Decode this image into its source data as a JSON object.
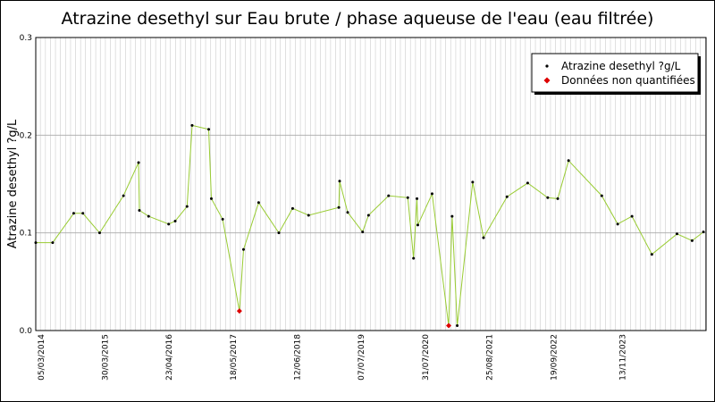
{
  "chart_data": {
    "type": "line",
    "title": "Atrazine desethyl sur Eau brute / phase aqueuse de l'eau (eau filtrée)",
    "ylabel": "Atrazine desethyl ?g/L",
    "xlabel": "",
    "ylim": [
      0,
      0.3
    ],
    "y_ticks": [
      "0.0",
      "0.1",
      "0.2",
      "0.3"
    ],
    "x_tick_labels": [
      "05/03/2014",
      "30/03/2015",
      "23/04/2016",
      "18/05/2017",
      "12/06/2018",
      "07/07/2019",
      "31/07/2020",
      "25/08/2021",
      "19/09/2022",
      "13/11/2023"
    ],
    "grid": true,
    "legend_position": "top-right",
    "colors": {
      "line": "#99cc33",
      "point": "#000000",
      "non_quantified": "#dd0000",
      "grid": "#cccccc"
    },
    "series": [
      {
        "name": "Atrazine desethyl ?g/L",
        "points": [
          [
            "2014-02-01",
            0.09
          ],
          [
            "2014-05-15",
            0.09
          ],
          [
            "2014-09-20",
            0.12
          ],
          [
            "2014-11-15",
            0.12
          ],
          [
            "2015-02-25",
            0.1
          ],
          [
            "2015-07-20",
            0.138
          ],
          [
            "2015-10-20",
            0.172
          ],
          [
            "2015-10-25",
            0.123
          ],
          [
            "2015-12-20",
            0.117
          ],
          [
            "2016-04-20",
            0.109
          ],
          [
            "2016-05-30",
            0.112
          ],
          [
            "2016-08-10",
            0.127
          ],
          [
            "2016-09-10",
            0.21
          ],
          [
            "2016-12-20",
            0.206
          ],
          [
            "2017-01-05",
            0.135
          ],
          [
            "2017-03-15",
            0.114
          ],
          [
            "2017-07-20",
            0.083
          ],
          [
            "2017-10-20",
            0.131
          ],
          [
            "2018-02-20",
            0.1
          ],
          [
            "2018-05-15",
            0.125
          ],
          [
            "2018-08-20",
            0.118
          ],
          [
            "2019-02-20",
            0.126
          ],
          [
            "2019-02-25",
            0.153
          ],
          [
            "2019-04-15",
            0.121
          ],
          [
            "2019-07-15",
            0.101
          ],
          [
            "2019-08-20",
            0.118
          ],
          [
            "2019-12-20",
            0.138
          ],
          [
            "2020-04-15",
            0.136
          ],
          [
            "2020-05-20",
            0.074
          ],
          [
            "2020-06-10",
            0.135
          ],
          [
            "2020-06-15",
            0.108
          ],
          [
            "2020-09-10",
            0.14
          ],
          [
            "2021-01-10",
            0.117
          ],
          [
            "2021-02-10",
            0.005
          ],
          [
            "2021-05-15",
            0.152
          ],
          [
            "2021-07-20",
            0.095
          ],
          [
            "2021-12-10",
            0.137
          ],
          [
            "2022-04-15",
            0.151
          ],
          [
            "2022-08-15",
            0.136
          ],
          [
            "2022-10-15",
            0.135
          ],
          [
            "2022-12-20",
            0.174
          ],
          [
            "2023-07-10",
            0.138
          ],
          [
            "2023-10-15",
            0.109
          ],
          [
            "2024-01-10",
            0.117
          ],
          [
            "2024-05-10",
            0.078
          ],
          [
            "2024-10-10",
            0.099
          ],
          [
            "2025-01-10",
            0.092
          ],
          [
            "2025-03-20",
            0.101
          ]
        ]
      },
      {
        "name": "Données non quantifiées",
        "points": [
          [
            "2017-06-25",
            0.02
          ],
          [
            "2020-12-20",
            0.005
          ]
        ]
      }
    ]
  }
}
